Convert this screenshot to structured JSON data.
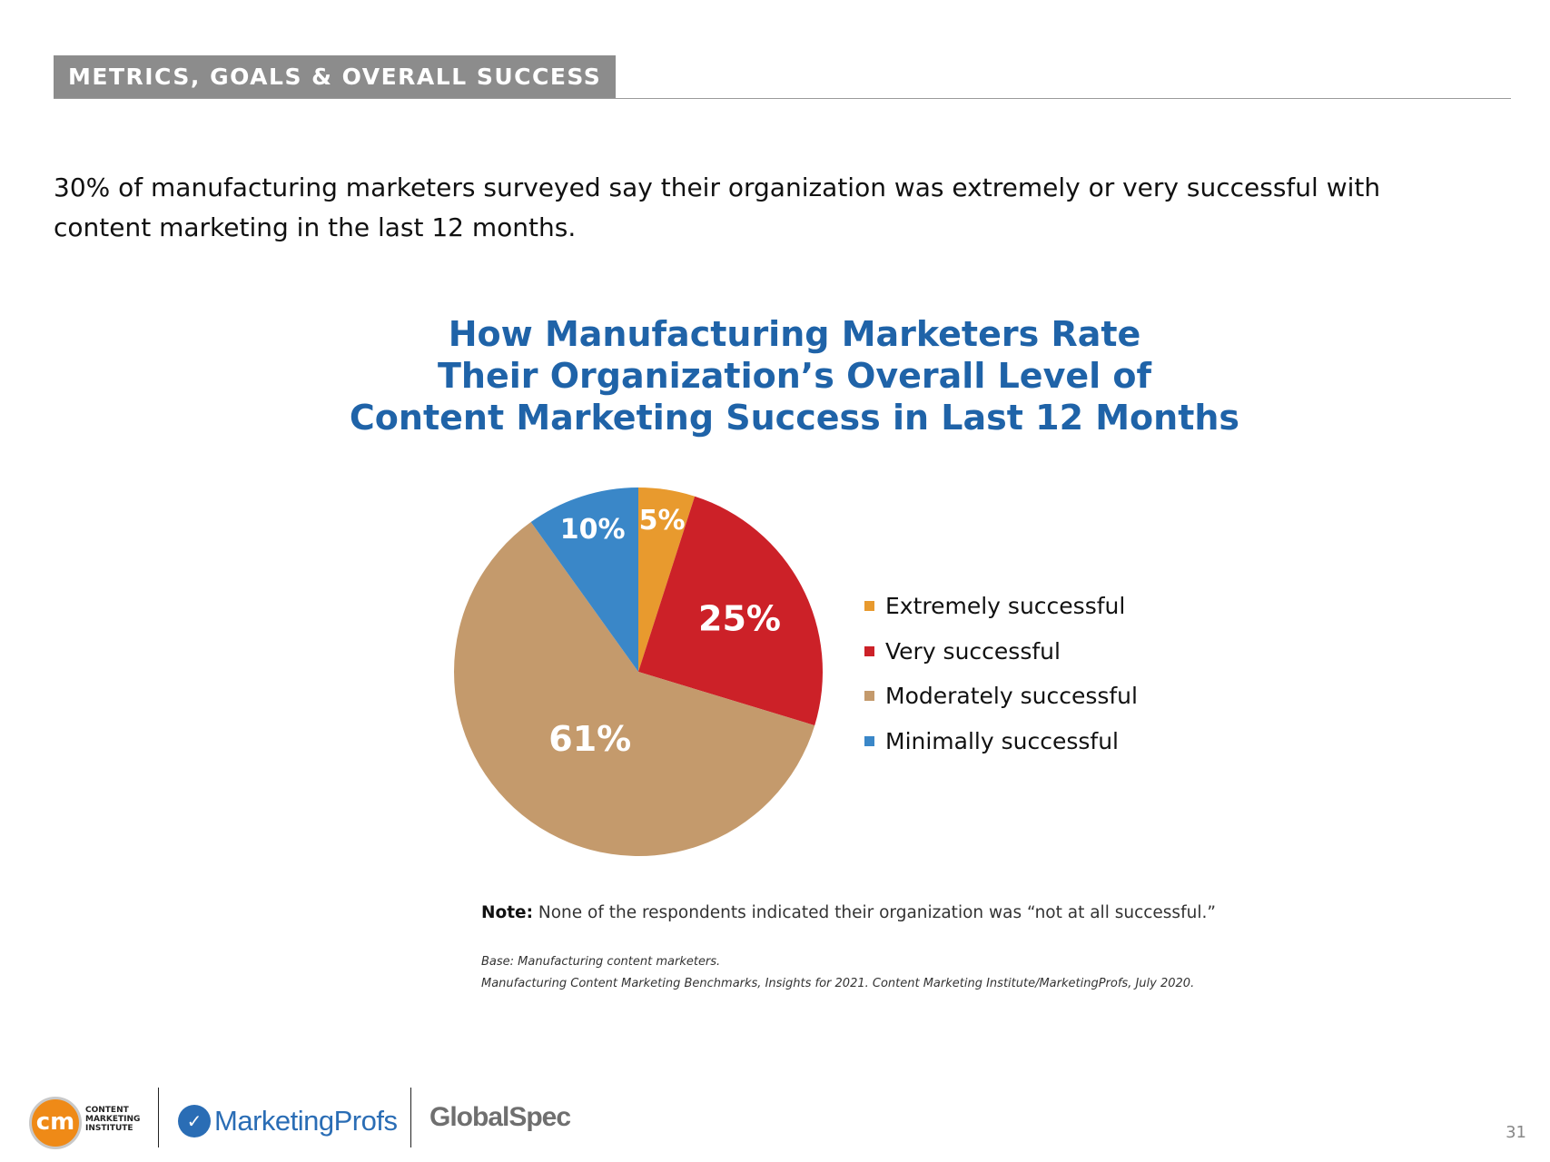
{
  "header": {
    "section_label": "METRICS, GOALS & OVERALL SUCCESS"
  },
  "intro": {
    "text": "30% of manufacturing marketers surveyed say their organization was extremely or very successful with content marketing in the last 12 months."
  },
  "chart_data": {
    "type": "pie",
    "title_lines": [
      "How Manufacturing Marketers Rate",
      "Their Organization’s Overall Level of",
      "Content Marketing Success in Last 12 Months"
    ],
    "categories": [
      "Extremely successful",
      "Very successful",
      "Moderately successful",
      "Minimally successful"
    ],
    "values": [
      5,
      25,
      61,
      10
    ],
    "data_labels": [
      "5%",
      "25%",
      "61%",
      "10%"
    ],
    "colors": [
      "#e89a2e",
      "#cc2128",
      "#c49a6c",
      "#3a87c8"
    ],
    "legend_position": "right"
  },
  "note": {
    "label": "Note:",
    "text": " None of the respondents indicated their organization was “not at all successful.”"
  },
  "source": {
    "base": "Base: Manufacturing content marketers.",
    "citation": "Manufacturing Content Marketing Benchmarks, Insights for 2021. Content Marketing Institute/MarketingProfs, July 2020."
  },
  "footer": {
    "cmi_mark": "cm",
    "cmi_lines": [
      "CONTENT",
      "MARKETING",
      "INSTITUTE"
    ],
    "mp_mark": "✓",
    "mp_name": "MarketingProfs",
    "gs_name": "GlobalSpec"
  },
  "page_number": "31"
}
